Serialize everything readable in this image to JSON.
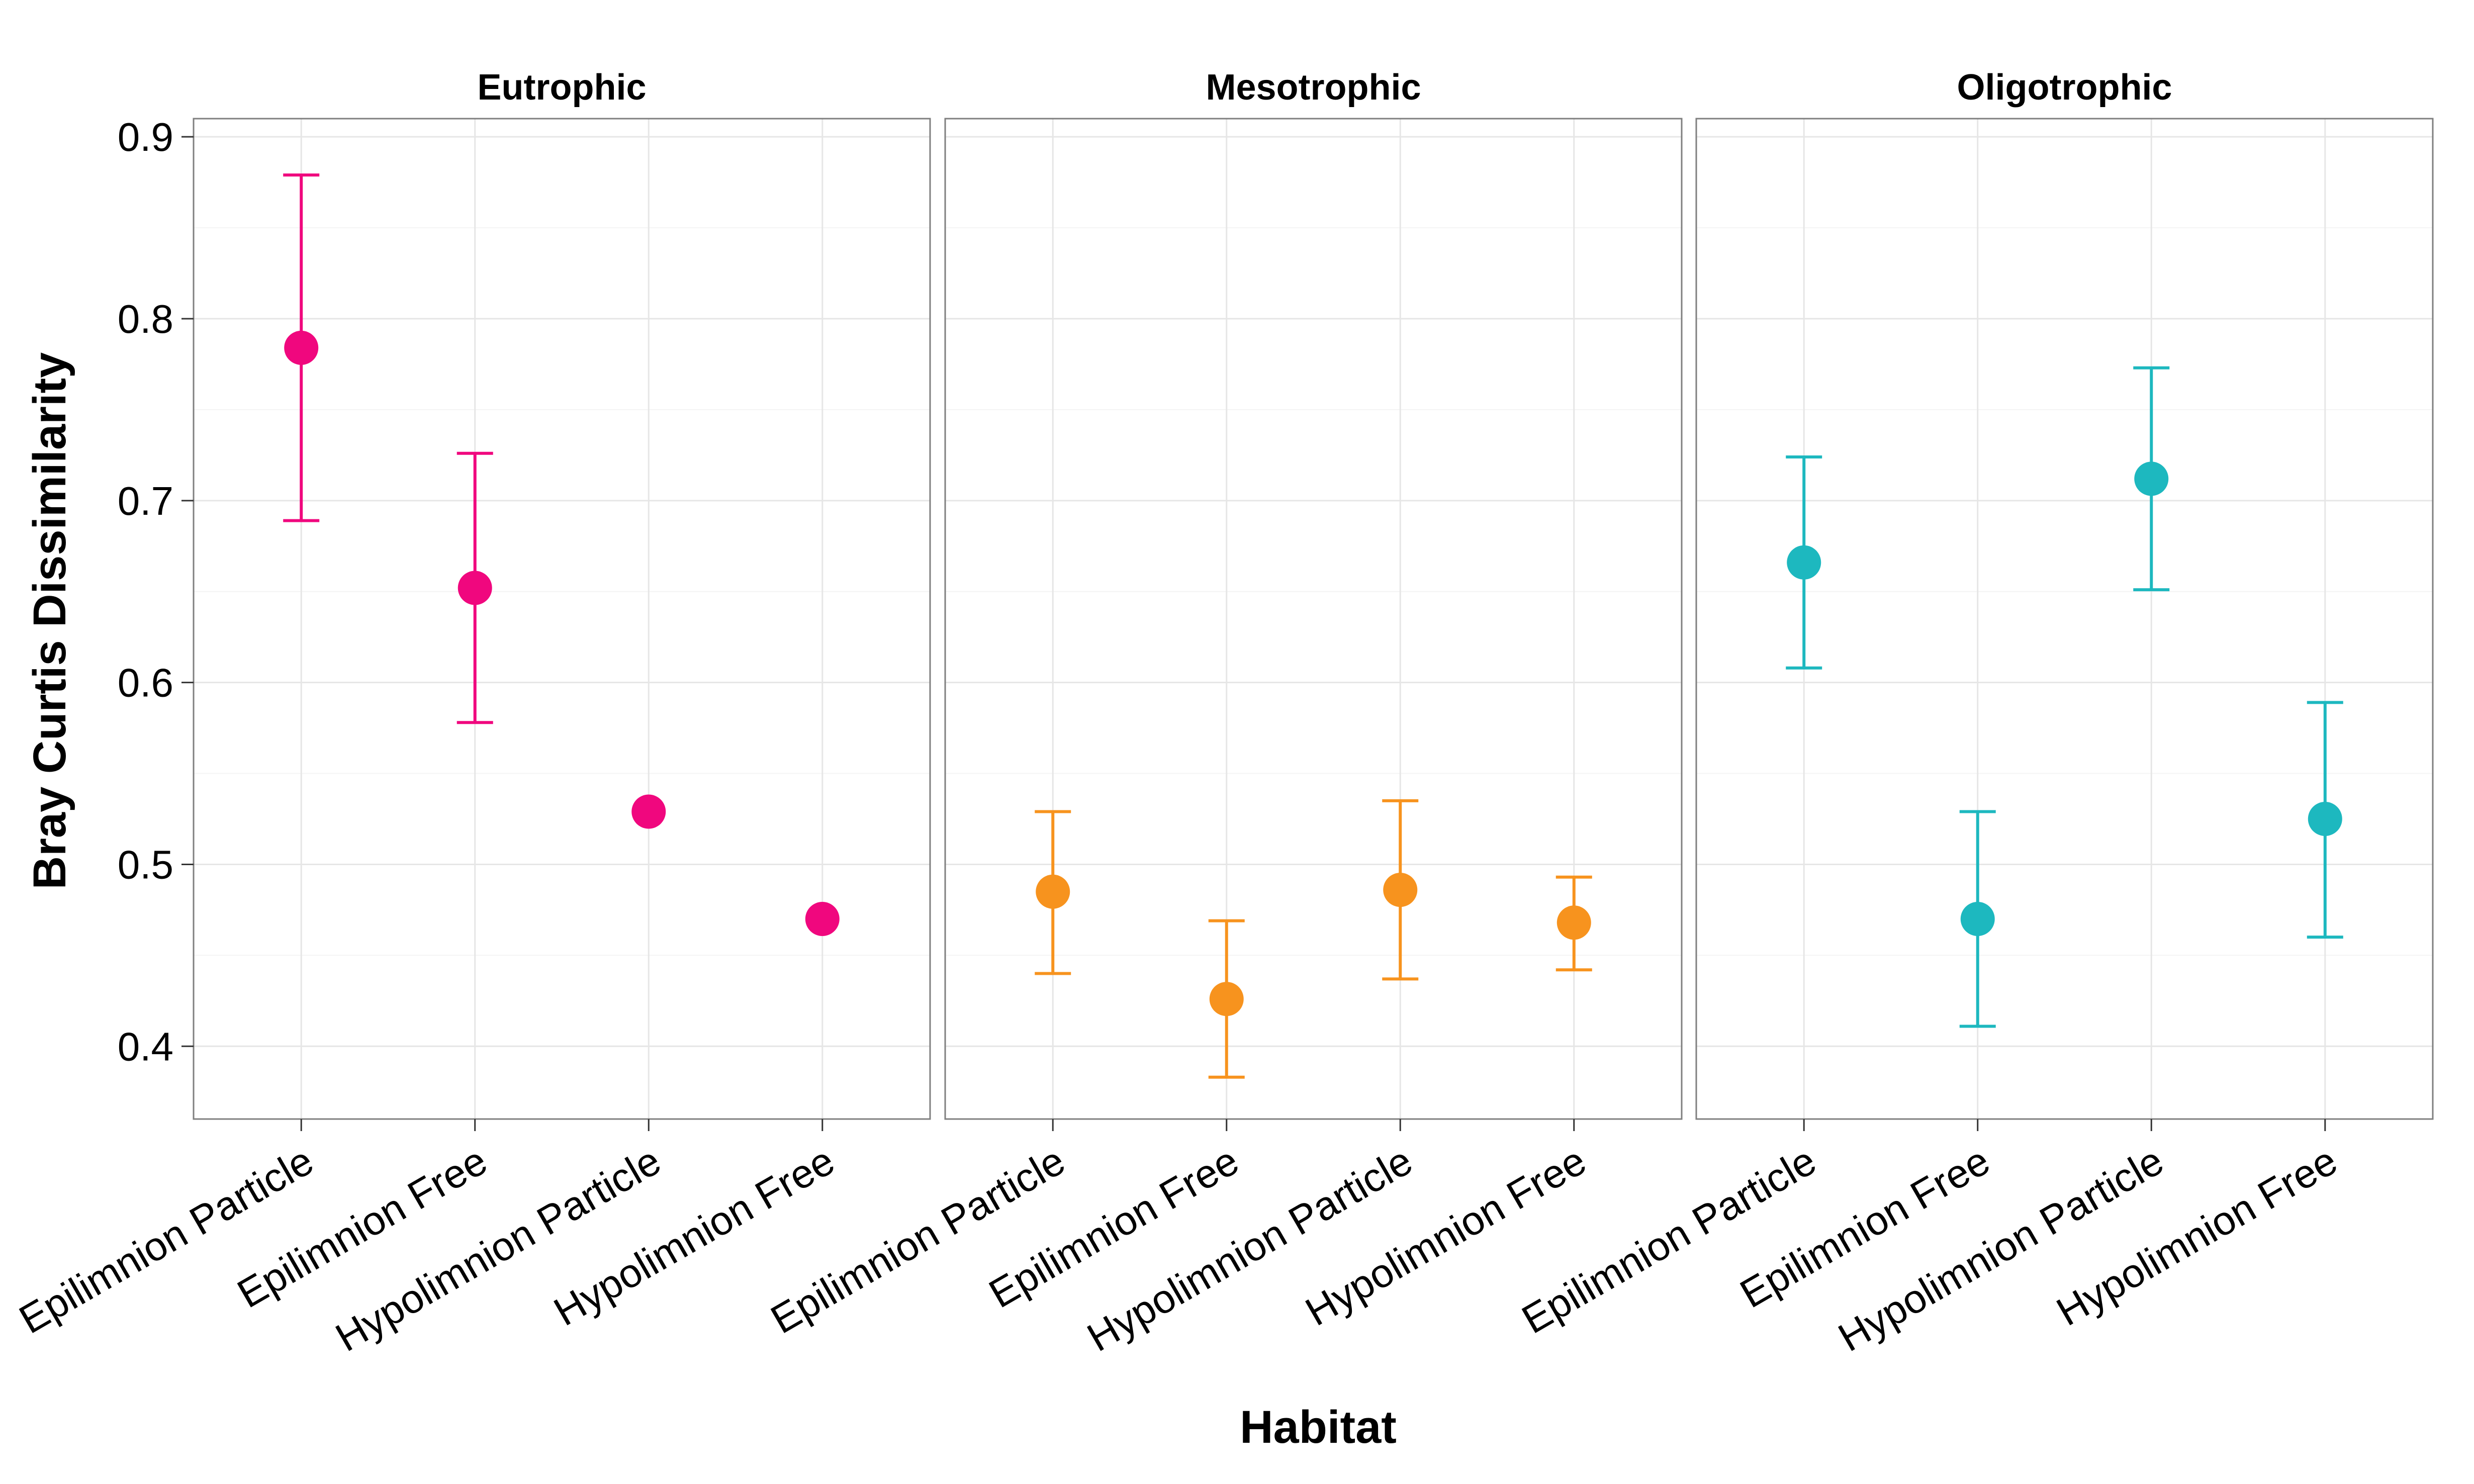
{
  "chart_data": {
    "type": "scatter",
    "subtype": "point-with-errorbars, faceted",
    "xlabel": "Habitat",
    "ylabel": "Bray Curtis Dissimilarity",
    "ylim": [
      0.36,
      0.91
    ],
    "yticks": [
      0.4,
      0.5,
      0.6,
      0.7,
      0.8,
      0.9
    ],
    "ytick_labels": [
      "0.4",
      "0.5",
      "0.6",
      "0.7",
      "0.8",
      "0.9"
    ],
    "grid": true,
    "legend": "none",
    "categories": [
      "Epilimnion Particle",
      "Epilimnion Free",
      "Hypolimnion Particle",
      "Hypolimnion Free"
    ],
    "facets": [
      {
        "name": "Eutrophic",
        "color": "#F0077E",
        "values": [
          0.784,
          0.652,
          0.529,
          0.47
        ],
        "lower": [
          0.689,
          0.578,
          null,
          null
        ],
        "upper": [
          0.879,
          0.726,
          null,
          null
        ]
      },
      {
        "name": "Mesotrophic",
        "color": "#F7931E",
        "values": [
          0.485,
          0.426,
          0.486,
          0.468
        ],
        "lower": [
          0.44,
          0.383,
          0.437,
          0.442
        ],
        "upper": [
          0.529,
          0.469,
          0.535,
          0.493
        ]
      },
      {
        "name": "Oligotrophic",
        "color": "#1DB8BF",
        "values": [
          0.666,
          0.47,
          0.712,
          0.525
        ],
        "lower": [
          0.608,
          0.411,
          0.651,
          0.46
        ],
        "upper": [
          0.724,
          0.529,
          0.773,
          0.589
        ]
      }
    ]
  }
}
